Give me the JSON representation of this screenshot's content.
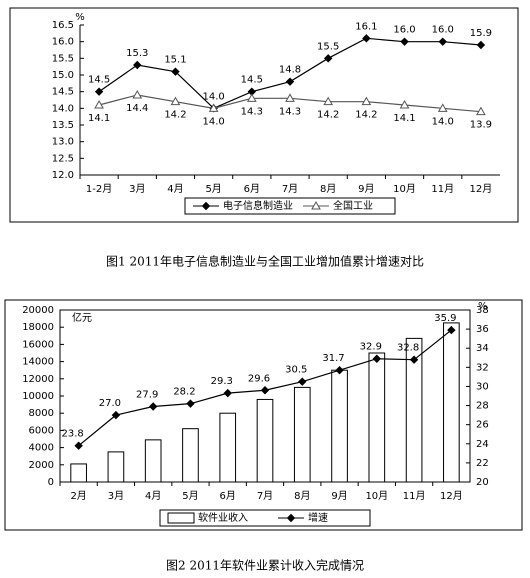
{
  "chart_data": [
    {
      "type": "line",
      "caption": "图1 2011年电子信息制造业与全国工业增加值累计增速对比",
      "unit": "%",
      "categories": [
        "1-2月",
        "3月",
        "4月",
        "5月",
        "6月",
        "7月",
        "8月",
        "9月",
        "10月",
        "11月",
        "12月"
      ],
      "ylim": [
        12,
        16.5
      ],
      "yticks": [
        {
          "value": 12,
          "label": "12.0"
        },
        {
          "value": 12.5,
          "label": "12.5"
        },
        {
          "value": 13,
          "label": "13.0"
        },
        {
          "value": 13.5,
          "label": "13.5"
        },
        {
          "value": 14,
          "label": "14.0"
        },
        {
          "value": 14.5,
          "label": "14.5"
        },
        {
          "value": 15,
          "label": "15.0"
        },
        {
          "value": 15.5,
          "label": "15.5"
        },
        {
          "value": 16,
          "label": "16.0"
        },
        {
          "value": 16.5,
          "label": "16.5"
        }
      ],
      "series": [
        {
          "name": "电子信息制造业",
          "type": "line",
          "marker": "diamond",
          "color": "#000000",
          "values": [
            14.5,
            15.3,
            15.1,
            14.0,
            14.5,
            14.8,
            15.5,
            16.1,
            16.0,
            16.0,
            15.9
          ],
          "value_labels": [
            "14.5",
            "15.3",
            "15.1",
            "14.0",
            "14.5",
            "14.8",
            "15.5",
            "16.1",
            "16.0",
            "16.0",
            "15.9"
          ]
        },
        {
          "name": "全国工业",
          "type": "line",
          "marker": "triangle",
          "color": "#555555",
          "values": [
            14.1,
            14.4,
            14.2,
            14.0,
            14.3,
            14.3,
            14.2,
            14.2,
            14.1,
            14.0,
            13.9
          ],
          "value_labels": [
            "14.1",
            "14.4",
            "14.2",
            "14.0",
            "14.3",
            "14.3",
            "14.2",
            "14.2",
            "14.1",
            "14.0",
            "13.9"
          ]
        }
      ]
    },
    {
      "type": "bar",
      "caption": "图2 2011年软件业累计收入完成情况",
      "unit": "亿元",
      "y2unit": "%",
      "categories": [
        "2月",
        "3月",
        "4月",
        "5月",
        "6月",
        "7月",
        "8月",
        "9月",
        "10月",
        "11月",
        "12月"
      ],
      "ylim": [
        0,
        20000
      ],
      "yticks": [
        0,
        2000,
        4000,
        6000,
        8000,
        10000,
        12000,
        14000,
        16000,
        18000,
        20000
      ],
      "y2lim": [
        20,
        38
      ],
      "y2ticks": [
        20,
        22,
        24,
        26,
        28,
        30,
        32,
        34,
        36,
        38
      ],
      "series": [
        {
          "name": "软件业收入",
          "type": "bar",
          "color": "#ffffff",
          "values": [
            2100,
            3500,
            4900,
            6200,
            8000,
            9600,
            11000,
            13000,
            15000,
            16700,
            18500
          ]
        },
        {
          "name": "增速",
          "type": "line",
          "axis": "y2",
          "marker": "diamond",
          "color": "#000000",
          "values": [
            23.8,
            27.0,
            27.9,
            28.2,
            29.3,
            29.6,
            30.5,
            31.7,
            32.9,
            32.8,
            35.9
          ],
          "value_labels": [
            "23.8",
            "27.0",
            "27.9",
            "28.2",
            "29.3",
            "29.6",
            "30.5",
            "31.7",
            "32.9",
            "32.8",
            "35.9"
          ]
        }
      ]
    }
  ]
}
